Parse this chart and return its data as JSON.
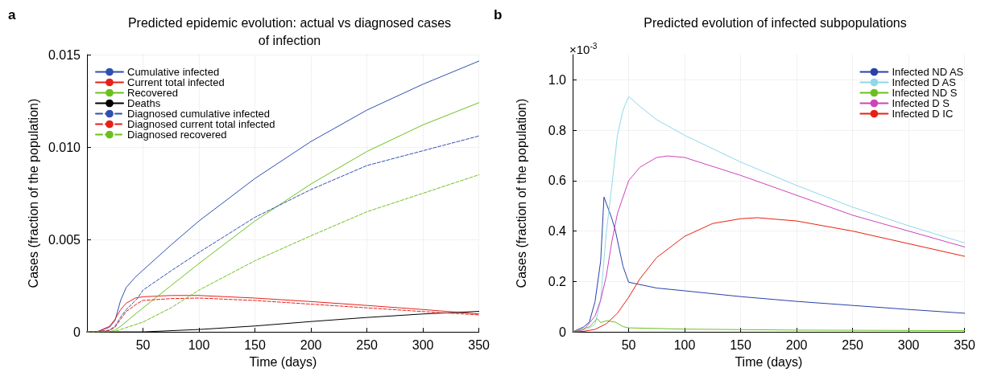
{
  "chart_data": [
    {
      "type": "line",
      "title": "Predicted epidemic evolution: actual vs diagnosed cases\nof infection",
      "xlabel": "Time (days)",
      "ylabel": "Cases (fraction of the population)",
      "annotations": [
        "a"
      ],
      "xlim": [
        0,
        350
      ],
      "xticks": [
        50,
        100,
        150,
        200,
        250,
        300,
        350
      ],
      "ylim": [
        0,
        0.015
      ],
      "yticks": [
        0,
        0.005,
        {
          "value": 0.01,
          "label": "0.010"
        },
        0.015
      ],
      "grid": true,
      "legend": "top left",
      "series": [
        {
          "name": "Cumulative infected",
          "color": "#3050b0",
          "line_style": "solid",
          "x": [
            0,
            10,
            20,
            25,
            30,
            35,
            43,
            50,
            75,
            100,
            150,
            200,
            250,
            300,
            350
          ],
          "values": [
            0,
            3e-05,
            0.00025,
            0.0006,
            0.0017,
            0.0024,
            0.00295,
            0.00334,
            0.0047,
            0.006,
            0.0083,
            0.0103,
            0.012,
            0.0134,
            0.01465
          ]
        },
        {
          "name": "Current total infected",
          "color": "#e8201a",
          "line_style": "solid",
          "x": [
            0,
            10,
            20,
            25,
            30,
            35,
            43,
            50,
            75,
            100,
            150,
            200,
            250,
            300,
            350
          ],
          "values": [
            0,
            3e-05,
            0.0003,
            0.00068,
            0.0012,
            0.00155,
            0.00183,
            0.0019,
            0.00197,
            0.00197,
            0.00183,
            0.00164,
            0.00143,
            0.00121,
            0.00097
          ]
        },
        {
          "name": "Recovered",
          "color": "#6cc01e",
          "line_style": "solid",
          "x": [
            0,
            20,
            25,
            30,
            50,
            75,
            100,
            150,
            200,
            250,
            300,
            350
          ],
          "values": [
            0,
            0,
            0.0001,
            0.0003,
            0.0013,
            0.0025,
            0.0037,
            0.006,
            0.008,
            0.00976,
            0.0112,
            0.0124
          ]
        },
        {
          "name": "Deaths",
          "color": "#000000",
          "line_style": "solid",
          "x": [
            0,
            50,
            100,
            150,
            200,
            250,
            300,
            350
          ],
          "values": [
            0,
            0,
            0.00013,
            0.00032,
            0.00056,
            0.00078,
            0.00097,
            0.00111
          ]
        },
        {
          "name": "Diagnosed cumulative infected",
          "color": "#3050b0",
          "line_style": "dashed",
          "x": [
            0,
            10,
            20,
            25,
            30,
            35,
            45,
            50,
            75,
            100,
            150,
            200,
            250,
            300,
            350
          ],
          "values": [
            0,
            2e-05,
            0.0001,
            0.0003,
            0.0008,
            0.0012,
            0.0018,
            0.00226,
            0.0033,
            0.0043,
            0.0062,
            0.0077,
            0.009,
            0.0098,
            0.0106
          ]
        },
        {
          "name": "Diagnosed current total infected",
          "color": "#e8201a",
          "line_style": "dashed",
          "x": [
            0,
            10,
            20,
            25,
            30,
            35,
            45,
            50,
            75,
            100,
            150,
            200,
            250,
            300,
            350
          ],
          "values": [
            0,
            2e-05,
            7e-05,
            0.00025,
            0.00068,
            0.0011,
            0.00154,
            0.0017,
            0.0018,
            0.00183,
            0.0017,
            0.0015,
            0.0013,
            0.0011,
            0.00092
          ]
        },
        {
          "name": "Diagnosed recovered",
          "color": "#6cc01e",
          "line_style": "dashed",
          "x": [
            0,
            25,
            30,
            50,
            75,
            100,
            150,
            200,
            250,
            300,
            350
          ],
          "values": [
            0,
            3e-05,
            0.00013,
            0.00053,
            0.0013,
            0.00226,
            0.00385,
            0.0052,
            0.0065,
            0.0075,
            0.0085
          ]
        }
      ]
    },
    {
      "type": "line",
      "title": "Predicted evolution of infected subpopulations",
      "xlabel": "Time (days)",
      "ylabel": "Cases (fraction of the population)",
      "annotations": [
        "b",
        "×10$^{-3}$"
      ],
      "xlim": [
        0,
        350
      ],
      "xticks": [
        50,
        100,
        150,
        200,
        250,
        300,
        350
      ],
      "ylim": [
        0,
        1.1
      ],
      "yticks": [
        0,
        0.2,
        0.4,
        0.6,
        0.8,
        {
          "value": 1,
          "label": "1.0"
        }
      ],
      "grid": true,
      "legend": "top right",
      "series": [
        {
          "name": "Infected ND AS",
          "color": "#2a40a8",
          "line_style": "solid",
          "x": [
            0,
            10,
            15,
            20,
            25,
            28,
            35,
            38,
            45,
            50,
            75,
            100,
            150,
            200,
            250,
            300,
            350
          ],
          "values": [
            0,
            0.02,
            0.04,
            0.12,
            0.28,
            0.535,
            0.45,
            0.405,
            0.26,
            0.197,
            0.174,
            0.163,
            0.14,
            0.121,
            0.105,
            0.089,
            0.074
          ]
        },
        {
          "name": "Infected D AS",
          "color": "#8ed8e8",
          "line_style": "solid",
          "x": [
            0,
            10,
            20,
            25,
            30,
            35,
            40,
            45,
            50,
            60,
            75,
            100,
            150,
            200,
            250,
            300,
            350
          ],
          "values": [
            0,
            0.002,
            0.03,
            0.126,
            0.39,
            0.58,
            0.78,
            0.88,
            0.934,
            0.895,
            0.842,
            0.78,
            0.674,
            0.581,
            0.495,
            0.421,
            0.353
          ]
        },
        {
          "name": "Infected ND S",
          "color": "#6ac020",
          "line_style": "solid",
          "x": [
            0,
            15,
            22,
            25,
            30,
            38,
            45,
            50,
            100,
            200,
            350
          ],
          "values": [
            0,
            0.02,
            0.053,
            0.037,
            0.044,
            0.039,
            0.021,
            0.016,
            0.011,
            0.007,
            0.005
          ]
        },
        {
          "name": "Infected D S",
          "color": "#cc44bb",
          "line_style": "solid",
          "x": [
            0,
            10,
            20,
            25,
            30,
            35,
            40,
            50,
            60,
            75,
            85,
            100,
            150,
            200,
            250,
            300,
            350
          ],
          "values": [
            0,
            0.008,
            0.063,
            0.126,
            0.22,
            0.358,
            0.47,
            0.6,
            0.653,
            0.692,
            0.698,
            0.692,
            0.621,
            0.542,
            0.463,
            0.4,
            0.337
          ]
        },
        {
          "name": "Infected D IC",
          "color": "#e82010",
          "line_style": "solid",
          "x": [
            0,
            10,
            20,
            30,
            40,
            50,
            60,
            75,
            100,
            125,
            150,
            165,
            200,
            250,
            300,
            350
          ],
          "values": [
            0,
            0.002,
            0.01,
            0.032,
            0.074,
            0.137,
            0.21,
            0.295,
            0.379,
            0.43,
            0.449,
            0.453,
            0.44,
            0.4,
            0.35,
            0.3
          ]
        }
      ]
    }
  ]
}
